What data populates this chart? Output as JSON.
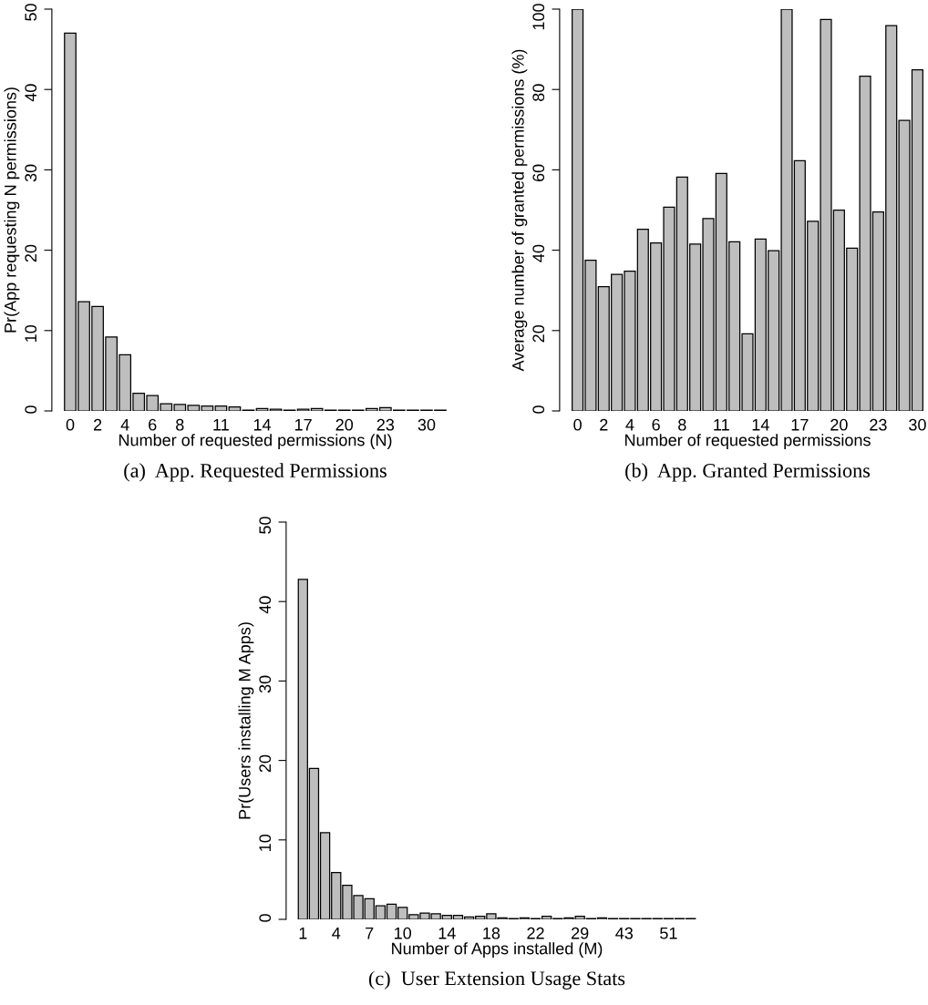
{
  "chart_data": [
    {
      "type": "bar",
      "title": "(a)  App. Requested Permissions",
      "xlabel": "Number of requested permissions (N)",
      "ylabel": "Pr(App requesting N permissions)",
      "color": "#bebebe",
      "ylim": [
        0,
        50
      ],
      "yticks": [
        0,
        10,
        20,
        30,
        40,
        50
      ],
      "categories": [
        "0",
        null,
        "2",
        null,
        "4",
        null,
        "6",
        null,
        "8",
        null,
        null,
        "11",
        null,
        null,
        "14",
        null,
        null,
        "17",
        null,
        null,
        "20",
        null,
        null,
        "23",
        null,
        null,
        "30",
        null
      ],
      "values": [
        47.0,
        13.6,
        13.0,
        9.2,
        7.0,
        2.2,
        1.9,
        0.9,
        0.8,
        0.7,
        0.6,
        0.6,
        0.5,
        0.1,
        0.3,
        0.2,
        0.1,
        0.2,
        0.3,
        0.1,
        0.1,
        0.1,
        0.3,
        0.4,
        0.1,
        0.1,
        0.1,
        0.1
      ]
    },
    {
      "type": "bar",
      "title": "(b)  App. Granted Permissions",
      "xlabel": "Number of requested permissions",
      "ylabel": "Average number of granted permissions (%)",
      "color": "#bebebe",
      "ylim": [
        0,
        100
      ],
      "yticks": [
        0,
        20,
        40,
        60,
        80,
        100
      ],
      "categories": [
        "0",
        null,
        "2",
        null,
        "4",
        null,
        "6",
        null,
        "8",
        null,
        null,
        "11",
        null,
        null,
        "14",
        null,
        null,
        "17",
        null,
        null,
        "20",
        null,
        null,
        "23",
        null,
        null,
        "30"
      ],
      "values": [
        100,
        37.5,
        30.9,
        34.0,
        34.8,
        45.2,
        41.8,
        50.7,
        58.2,
        41.5,
        47.9,
        59.1,
        42.1,
        19.2,
        42.8,
        39.9,
        100,
        62.3,
        47.2,
        97.4,
        50.0,
        40.5,
        83.3,
        49.5,
        95.9,
        72.3,
        84.9
      ]
    },
    {
      "type": "bar",
      "title": "(c)  User Extension Usage Stats",
      "xlabel": "Number of Apps installed (M)",
      "ylabel": "Pr(Users installing M Apps)",
      "color": "#bebebe",
      "ylim": [
        0,
        50
      ],
      "yticks": [
        0,
        10,
        20,
        30,
        40,
        50
      ],
      "categories": [
        "1",
        null,
        null,
        "4",
        null,
        null,
        "7",
        null,
        null,
        "10",
        null,
        null,
        null,
        "14",
        null,
        null,
        null,
        "18",
        null,
        null,
        null,
        "22",
        null,
        null,
        null,
        "29",
        null,
        null,
        null,
        "43",
        null,
        null,
        null,
        "51",
        null,
        null
      ],
      "values": [
        42.8,
        19.0,
        10.9,
        5.9,
        4.3,
        3.0,
        2.6,
        1.7,
        1.9,
        1.5,
        0.6,
        0.8,
        0.7,
        0.5,
        0.5,
        0.3,
        0.4,
        0.7,
        0.2,
        0.1,
        0.2,
        0.1,
        0.4,
        0.1,
        0.2,
        0.4,
        0.1,
        0.2,
        0.1,
        0.1,
        0.1,
        0.1,
        0.1,
        0.1,
        0.1,
        0.1
      ]
    }
  ]
}
